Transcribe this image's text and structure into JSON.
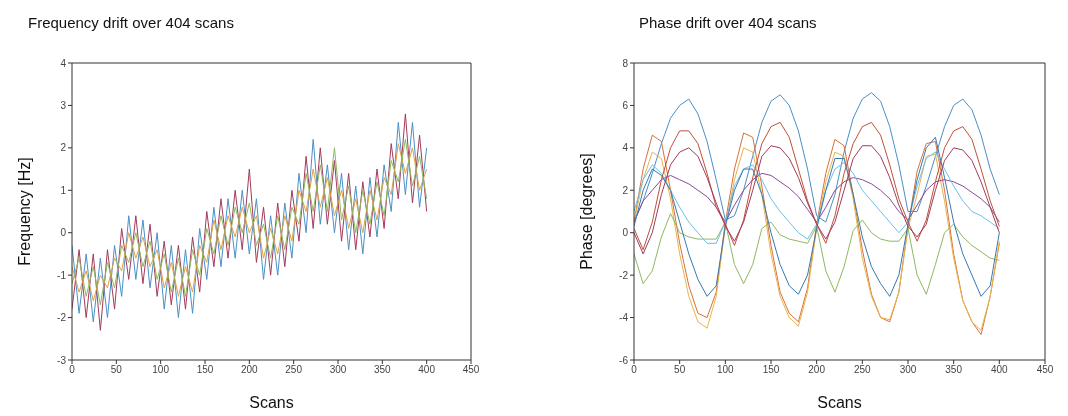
{
  "chart_data": [
    {
      "type": "line",
      "title": "Frequency drift over 404 scans",
      "xlabel": "Scans",
      "ylabel": "Frequency [Hz]",
      "xlim": [
        0,
        450
      ],
      "xticks": [
        0,
        50,
        100,
        150,
        200,
        250,
        300,
        350,
        400,
        450
      ],
      "ylim": [
        -3,
        4
      ],
      "yticks": [
        -3,
        -2,
        -1,
        0,
        1,
        2,
        3,
        4
      ],
      "x": [
        0,
        8,
        16,
        24,
        32,
        40,
        48,
        56,
        64,
        72,
        80,
        88,
        96,
        104,
        112,
        120,
        128,
        136,
        144,
        152,
        160,
        168,
        176,
        184,
        192,
        200,
        208,
        216,
        224,
        232,
        240,
        248,
        256,
        264,
        272,
        280,
        288,
        296,
        304,
        312,
        320,
        328,
        336,
        344,
        352,
        360,
        368,
        376,
        384,
        392,
        400
      ],
      "series": [
        {
          "color": "#4a90c8",
          "values": [
            -0.3,
            -1.9,
            -0.5,
            -2.1,
            -0.6,
            -2.0,
            -0.3,
            -1.5,
            0.4,
            -1.1,
            0.3,
            -1.3,
            0.0,
            -1.8,
            -0.3,
            -2.0,
            -0.4,
            -1.9,
            0.1,
            -1.1,
            0.6,
            -0.8,
            0.8,
            -0.6,
            1.0,
            -0.5,
            0.8,
            -1.1,
            0.4,
            -1.0,
            0.7,
            -0.6,
            1.4,
            0.0,
            2.2,
            0.2,
            1.6,
            0.0,
            1.4,
            -0.4,
            1.1,
            -0.5,
            1.3,
            -0.1,
            1.6,
            0.5,
            2.6,
            0.9,
            2.6,
            0.6,
            2.0
          ]
        },
        {
          "color": "#a33a5a",
          "values": [
            -1.8,
            -0.4,
            -2.0,
            -0.5,
            -2.3,
            -0.4,
            -1.8,
            0.1,
            -1.1,
            0.4,
            -1.2,
            0.2,
            -1.5,
            -0.2,
            -1.7,
            -0.3,
            -1.8,
            -0.1,
            -1.4,
            0.5,
            -0.8,
            0.8,
            -0.6,
            1.0,
            -0.4,
            1.5,
            -0.7,
            0.6,
            -1.0,
            0.7,
            -0.8,
            1.0,
            -0.2,
            1.8,
            0.1,
            2.0,
            0.2,
            1.7,
            -0.2,
            1.4,
            -0.4,
            1.2,
            -0.1,
            1.5,
            0.1,
            2.1,
            0.8,
            2.8,
            0.7,
            2.3,
            0.5
          ]
        },
        {
          "color": "#e0a040",
          "values": [
            -0.8,
            -1.4,
            -0.9,
            -1.6,
            -1.0,
            -1.3,
            -0.6,
            -0.9,
            0.0,
            -0.6,
            -0.1,
            -0.8,
            -0.4,
            -1.3,
            -0.7,
            -1.5,
            -0.8,
            -1.4,
            -0.3,
            -0.7,
            0.3,
            -0.4,
            0.4,
            -0.1,
            0.6,
            0.0,
            0.4,
            -0.6,
            0.1,
            -0.5,
            0.4,
            -0.2,
            1.0,
            0.5,
            1.5,
            0.6,
            1.3,
            0.4,
            1.0,
            0.1,
            0.8,
            0.0,
            1.0,
            0.3,
            1.3,
            0.9,
            2.1,
            1.4,
            2.0,
            1.0,
            1.5
          ]
        },
        {
          "color": "#8fb860",
          "values": [
            -1.2,
            -0.6,
            -1.5,
            -0.8,
            -1.7,
            -0.7,
            -1.3,
            -0.3,
            -0.7,
            0.0,
            -0.8,
            -0.2,
            -1.1,
            -0.5,
            -1.4,
            -0.6,
            -1.5,
            -0.4,
            -1.0,
            0.1,
            -0.5,
            0.4,
            -0.3,
            0.6,
            0.0,
            0.7,
            -0.3,
            0.2,
            -0.6,
            0.4,
            -0.4,
            0.6,
            0.2,
            1.4,
            0.5,
            1.6,
            0.5,
            2.0,
            0.3,
            1.1,
            0.0,
            1.0,
            0.2,
            1.2,
            0.4,
            1.7,
            1.2,
            2.2,
            1.1,
            1.8,
            0.8
          ]
        }
      ]
    },
    {
      "type": "line",
      "title": "Phase drift over 404 scans",
      "xlabel": "Scans",
      "ylabel": "Phase [degrees]",
      "xlim": [
        0,
        450
      ],
      "xticks": [
        0,
        50,
        100,
        150,
        200,
        250,
        300,
        350,
        400,
        450
      ],
      "ylim": [
        -6,
        8
      ],
      "yticks": [
        -6,
        -4,
        -2,
        0,
        2,
        4,
        6,
        8
      ],
      "x": [
        0,
        10,
        20,
        30,
        40,
        50,
        60,
        70,
        80,
        90,
        100,
        110,
        120,
        130,
        140,
        150,
        160,
        170,
        180,
        190,
        200,
        210,
        220,
        230,
        240,
        250,
        260,
        270,
        280,
        290,
        300,
        310,
        320,
        330,
        340,
        350,
        360,
        370,
        380,
        390,
        400
      ],
      "series": [
        {
          "color": "#4a90c8",
          "values": [
            0.5,
            1.5,
            2.8,
            4.2,
            5.4,
            6.0,
            6.3,
            5.6,
            4.3,
            2.5,
            0.6,
            0.8,
            2.0,
            3.6,
            5.2,
            6.2,
            6.5,
            6.0,
            4.8,
            3.0,
            0.8,
            0.5,
            1.8,
            3.8,
            5.4,
            6.3,
            6.6,
            6.2,
            5.0,
            3.2,
            1.0,
            1.0,
            2.2,
            3.6,
            5.0,
            6.0,
            6.3,
            5.8,
            4.6,
            3.0,
            1.8
          ]
        },
        {
          "color": "#d9703a",
          "values": [
            0.5,
            3.0,
            4.6,
            4.3,
            2.0,
            -0.5,
            -2.5,
            -3.8,
            -4.0,
            -2.8,
            0.5,
            3.0,
            4.7,
            4.5,
            2.2,
            -0.6,
            -2.8,
            -3.8,
            -4.2,
            -2.6,
            0.4,
            2.8,
            4.4,
            4.1,
            1.8,
            -0.8,
            -2.9,
            -4.0,
            -4.2,
            -2.8,
            0.3,
            2.9,
            4.2,
            4.3,
            2.0,
            -1.0,
            -3.2,
            -4.2,
            -4.8,
            -3.0,
            -0.5
          ]
        },
        {
          "color": "#e8b54a",
          "values": [
            0.5,
            2.5,
            3.8,
            3.5,
            1.6,
            -1.0,
            -3.0,
            -4.2,
            -4.5,
            -3.0,
            0.3,
            2.5,
            4.0,
            3.8,
            1.8,
            -1.0,
            -3.0,
            -4.0,
            -4.4,
            -2.8,
            0.2,
            2.4,
            3.8,
            3.6,
            1.6,
            -1.2,
            -3.0,
            -4.0,
            -4.1,
            -2.8,
            0.2,
            1.8,
            3.6,
            3.7,
            1.5,
            -1.2,
            -3.2,
            -4.2,
            -4.6,
            -3.0,
            -0.4
          ]
        },
        {
          "color": "#8fb860",
          "values": [
            -1.0,
            -2.4,
            -1.8,
            -0.2,
            0.9,
            0.0,
            -0.2,
            -0.3,
            -0.3,
            -0.3,
            0.5,
            -1.5,
            -2.4,
            -1.5,
            0.2,
            0.5,
            -0.1,
            -0.3,
            -0.4,
            -0.5,
            0.3,
            -1.8,
            -2.8,
            -1.6,
            0.1,
            0.6,
            0.0,
            -0.3,
            -0.4,
            -0.4,
            0.2,
            -2.0,
            -2.9,
            -1.5,
            0.0,
            0.4,
            -0.2,
            -0.6,
            -0.9,
            -1.2,
            -1.3
          ]
        },
        {
          "color": "#8a4a9a",
          "values": [
            0.5,
            1.5,
            2.0,
            2.5,
            2.7,
            2.5,
            2.3,
            2.0,
            1.7,
            1.2,
            0.5,
            1.3,
            2.0,
            2.5,
            2.8,
            2.7,
            2.4,
            2.1,
            1.7,
            1.1,
            0.5,
            1.2,
            2.0,
            2.4,
            2.6,
            2.5,
            2.3,
            2.0,
            1.6,
            1.0,
            0.6,
            1.3,
            2.0,
            2.4,
            2.5,
            2.4,
            2.2,
            1.9,
            1.6,
            1.2,
            0.5
          ]
        },
        {
          "color": "#6cc0e8",
          "values": [
            1.0,
            2.5,
            3.2,
            2.8,
            2.0,
            1.2,
            0.5,
            0.0,
            -0.5,
            -0.5,
            0.5,
            2.2,
            3.0,
            3.2,
            2.5,
            1.6,
            1.0,
            0.5,
            0.0,
            -0.3,
            0.4,
            2.0,
            3.0,
            3.3,
            2.8,
            2.0,
            1.5,
            1.0,
            0.5,
            0.0,
            0.5,
            2.2,
            3.5,
            3.8,
            3.0,
            2.2,
            1.5,
            1.0,
            0.8,
            0.5,
            0.2
          ]
        },
        {
          "color": "#3a78b0",
          "values": [
            0.3,
            2.0,
            3.0,
            2.7,
            2.0,
            0.5,
            -1.0,
            -2.2,
            -3.0,
            -2.5,
            0.3,
            2.0,
            3.0,
            3.0,
            1.8,
            0.0,
            -1.5,
            -2.5,
            -2.9,
            -2.0,
            0.2,
            2.0,
            3.5,
            3.5,
            1.8,
            -0.2,
            -1.6,
            -2.4,
            -3.0,
            -2.0,
            0.4,
            2.5,
            4.0,
            4.5,
            2.6,
            0.5,
            -1.0,
            -2.0,
            -3.0,
            -2.5,
            0.0
          ]
        },
        {
          "color": "#c0503a",
          "values": [
            0.2,
            -0.8,
            0.5,
            2.5,
            4.0,
            4.8,
            4.8,
            4.2,
            2.8,
            1.2,
            0.4,
            -0.6,
            0.6,
            2.6,
            4.2,
            5.0,
            5.2,
            4.5,
            3.0,
            1.5,
            0.4,
            -0.5,
            0.8,
            2.8,
            4.2,
            5.0,
            5.2,
            4.6,
            3.2,
            1.6,
            0.5,
            -0.4,
            0.6,
            2.4,
            4.0,
            4.8,
            5.0,
            4.4,
            3.0,
            1.5,
            0.3
          ]
        },
        {
          "color": "#a33a5a",
          "values": [
            0.0,
            -1.0,
            0.0,
            1.8,
            3.2,
            3.8,
            4.0,
            3.6,
            2.6,
            1.4,
            0.3,
            -0.4,
            0.5,
            2.0,
            3.6,
            4.1,
            4.0,
            3.5,
            2.6,
            1.4,
            0.4,
            -0.3,
            0.5,
            2.0,
            3.5,
            4.1,
            4.1,
            3.6,
            2.6,
            1.3,
            0.3,
            -0.2,
            0.4,
            2.0,
            3.4,
            4.0,
            3.9,
            3.4,
            2.4,
            1.2,
            0.0
          ]
        }
      ]
    }
  ]
}
